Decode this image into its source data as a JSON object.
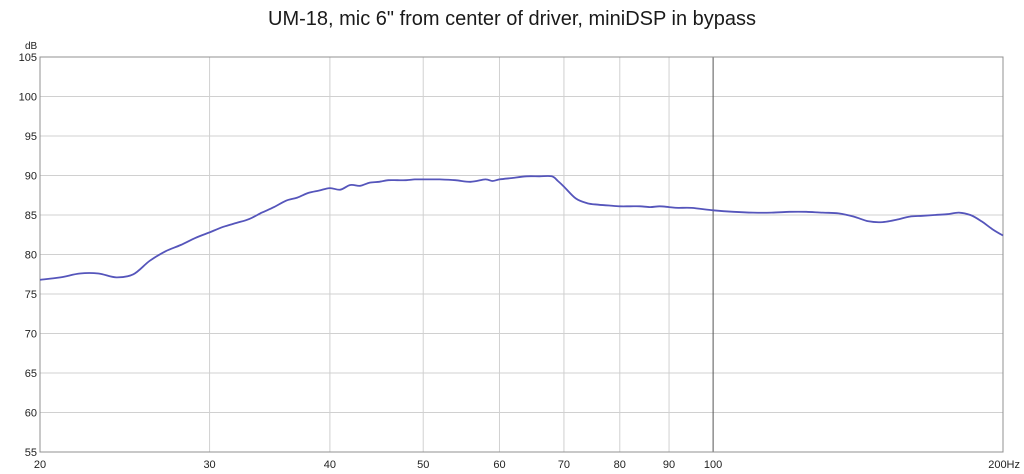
{
  "chart_data": {
    "type": "line",
    "title": "UM-18, mic 6\" from center of driver, miniDSP in bypass",
    "ylabel": "dB",
    "x_unit": "Hz",
    "x_scale": "log",
    "xlim": [
      20,
      200
    ],
    "ylim": [
      55,
      105
    ],
    "x_ticks": [
      20,
      30,
      40,
      50,
      60,
      70,
      80,
      90,
      100,
      200
    ],
    "x_tick_labels": [
      "20",
      "30",
      "40",
      "50",
      "60",
      "70",
      "80",
      "90",
      "100",
      "200Hz"
    ],
    "y_ticks": [
      55,
      60,
      65,
      70,
      75,
      80,
      85,
      90,
      95,
      100,
      105
    ],
    "grid": true,
    "line_color": "#5555bb",
    "series": [
      {
        "x": [
          20,
          21,
          22,
          23,
          24,
          25,
          26,
          27,
          28,
          29,
          30,
          31,
          32,
          33,
          34,
          35,
          36,
          37,
          38,
          39,
          40,
          41,
          42,
          43,
          44,
          45,
          46,
          47,
          48,
          49,
          50,
          52,
          54,
          56,
          58,
          59,
          60,
          62,
          64,
          66,
          68,
          69,
          70,
          72,
          74,
          76,
          78,
          80,
          82,
          84,
          86,
          88,
          90,
          92,
          95,
          100,
          105,
          110,
          115,
          120,
          125,
          130,
          135,
          140,
          145,
          150,
          155,
          160,
          165,
          170,
          175,
          180,
          185,
          190,
          195,
          200
        ],
        "y": [
          76.8,
          77.1,
          77.6,
          77.6,
          77.1,
          77.5,
          79.2,
          80.4,
          81.2,
          82.1,
          82.8,
          83.5,
          84.0,
          84.5,
          85.3,
          86.0,
          86.8,
          87.2,
          87.8,
          88.1,
          88.4,
          88.2,
          88.8,
          88.7,
          89.1,
          89.2,
          89.4,
          89.4,
          89.4,
          89.5,
          89.5,
          89.5,
          89.4,
          89.2,
          89.5,
          89.3,
          89.5,
          89.7,
          89.9,
          89.9,
          89.9,
          89.3,
          88.6,
          87.1,
          86.5,
          86.3,
          86.2,
          86.1,
          86.1,
          86.1,
          86.0,
          86.1,
          86.0,
          85.9,
          85.9,
          85.6,
          85.4,
          85.3,
          85.3,
          85.4,
          85.4,
          85.3,
          85.2,
          84.8,
          84.2,
          84.1,
          84.4,
          84.8,
          84.9,
          85.0,
          85.1,
          85.3,
          85.0,
          84.2,
          83.2,
          82.4
        ]
      }
    ]
  }
}
